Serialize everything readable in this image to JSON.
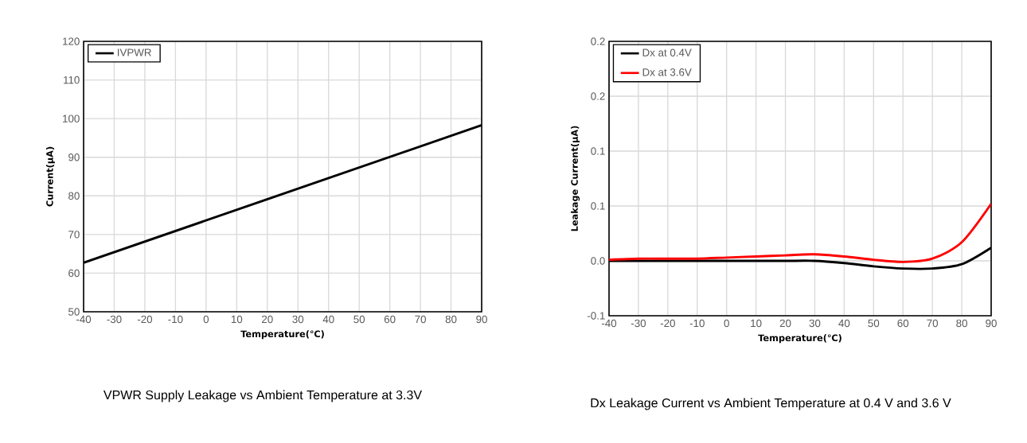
{
  "chart_data": [
    {
      "type": "line",
      "xlabel": "Temperature(℃)",
      "ylabel": "Current(µA)",
      "annotations": [
        "VPWR Supply Leakage vs Ambient Temperature at 3.3V"
      ],
      "legend": "top left",
      "grid": true,
      "xlim": [
        -40,
        90
      ],
      "ylim": [
        50,
        120
      ],
      "xticks": [
        -40,
        -30,
        -20,
        -10,
        0,
        10,
        20,
        30,
        40,
        50,
        60,
        70,
        80,
        90
      ],
      "yticks": [
        50,
        60,
        70,
        80,
        90,
        100,
        110,
        120
      ],
      "x": [
        -40,
        90
      ],
      "series": [
        {
          "name": "IVPWR",
          "color": "#000000",
          "values": [
            62.7,
            98.3
          ]
        }
      ]
    },
    {
      "type": "line",
      "xlabel": "Temperature(℃)",
      "ylabel": "Leakage Current(µA)",
      "annotations": [
        "Dx Leakage Current vs Ambient Temperature at 0.4 V and 3.6 V"
      ],
      "legend": "top left",
      "grid": true,
      "xlim": [
        -40,
        90
      ],
      "ylim": [
        -0.05,
        0.2
      ],
      "xticks": [
        -40,
        -30,
        -20,
        -10,
        0,
        10,
        20,
        30,
        40,
        50,
        60,
        70,
        80,
        90
      ],
      "yticks": [
        {
          "value": -0.05,
          "label": "-0.1"
        },
        {
          "value": 0,
          "label": "0.0"
        },
        {
          "value": 0.05,
          "label": "0.1"
        },
        {
          "value": 0.1,
          "label": "0.1"
        },
        {
          "value": 0.15,
          "label": "0.2"
        },
        {
          "value": 0.2,
          "label": "0.2"
        }
      ],
      "x": [
        -40,
        -30,
        -20,
        -10,
        0,
        10,
        20,
        30,
        40,
        50,
        60,
        70,
        80,
        90
      ],
      "series": [
        {
          "name": "Dx at 0.4V",
          "color": "#000000",
          "values": [
            0,
            0,
            0,
            0,
            0,
            0,
            0,
            0,
            -0.002,
            -0.005,
            -0.007,
            -0.007,
            -0.003,
            0.012
          ]
        },
        {
          "name": "Dx at 3.6V",
          "color": "#ff0000",
          "values": [
            0.001,
            0.002,
            0.002,
            0.002,
            0.003,
            0.004,
            0.005,
            0.006,
            0.004,
            0.001,
            -0.001,
            0.002,
            0.017,
            0.052
          ]
        }
      ]
    }
  ]
}
